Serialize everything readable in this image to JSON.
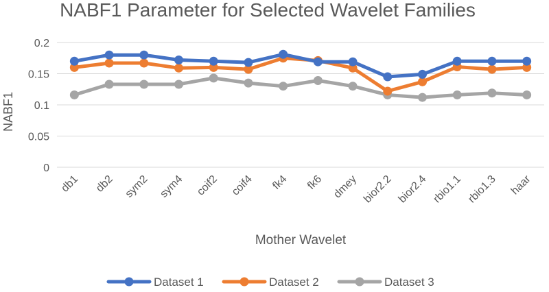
{
  "chart_data": {
    "type": "line",
    "title": "NABF1 Parameter for Selected Wavelet Families",
    "xlabel": "Mother Wavelet",
    "ylabel": "NABF1",
    "ylim": [
      0,
      0.2
    ],
    "yticks": [
      "0",
      "0.05",
      "0.1",
      "0.15",
      "0.2"
    ],
    "ytick_values": [
      0,
      0.05,
      0.1,
      0.15,
      0.2
    ],
    "grid": true,
    "legend_position": "bottom",
    "categories": [
      "db1",
      "db2",
      "sym2",
      "sym4",
      "coif2",
      "coif4",
      "fk4",
      "fk6",
      "dmey",
      "bior2.2",
      "bior2.4",
      "rbio1.1",
      "rbio1.3",
      "haar"
    ],
    "series": [
      {
        "name": "Dataset 1",
        "color": "#4472C4",
        "values": [
          0.17,
          0.18,
          0.18,
          0.172,
          0.17,
          0.168,
          0.181,
          0.169,
          0.169,
          0.145,
          0.149,
          0.17,
          0.17,
          0.17
        ]
      },
      {
        "name": "Dataset 2",
        "color": "#ED7D31",
        "values": [
          0.16,
          0.167,
          0.167,
          0.159,
          0.16,
          0.157,
          0.175,
          0.171,
          0.159,
          0.122,
          0.137,
          0.161,
          0.157,
          0.16
        ]
      },
      {
        "name": "Dataset 3",
        "color": "#A5A5A5",
        "values": [
          0.116,
          0.133,
          0.133,
          0.133,
          0.143,
          0.135,
          0.13,
          0.139,
          0.13,
          0.116,
          0.112,
          0.116,
          0.119,
          0.116
        ]
      }
    ]
  }
}
